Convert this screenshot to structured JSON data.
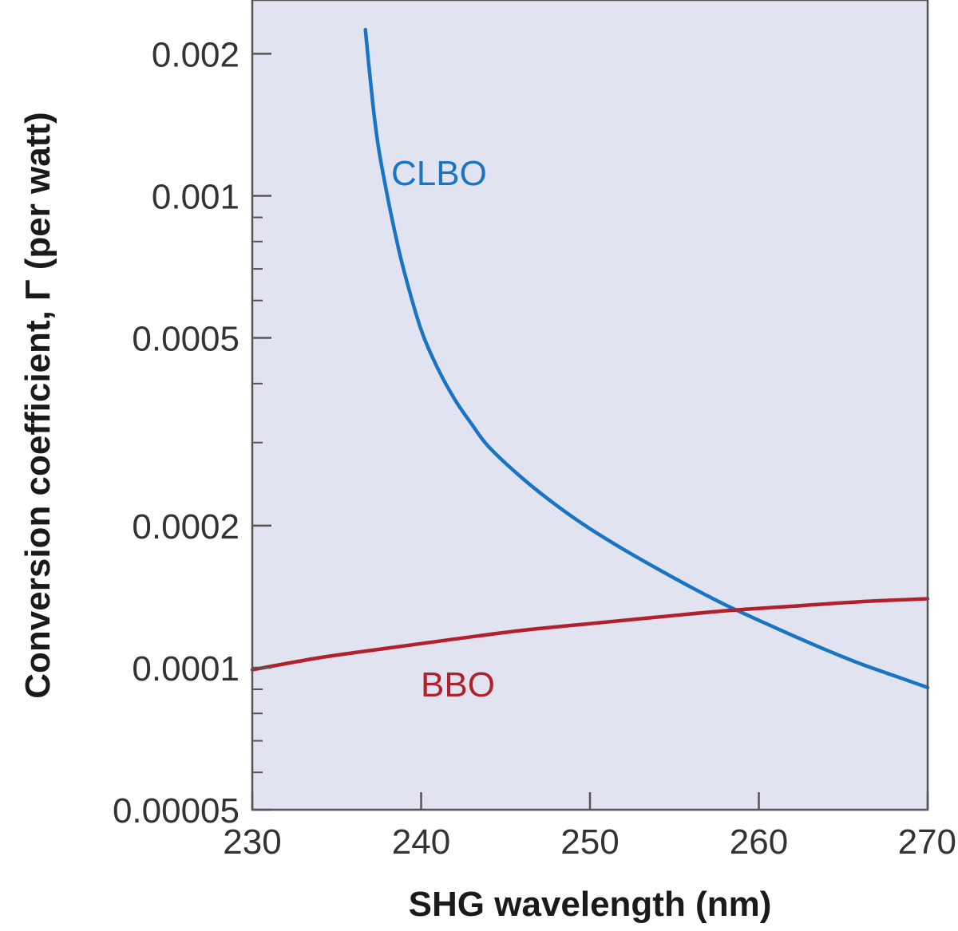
{
  "chart_data": {
    "type": "line",
    "title": "",
    "xlabel": "SHG wavelength (nm)",
    "ylabel": "Conversion coefficient, Γ (per watt)",
    "xlim": [
      230,
      270
    ],
    "ylim": [
      5e-05,
      0.0026
    ],
    "yscale": "log",
    "grid": false,
    "legend": "none",
    "plot_background": "#e1e4f0",
    "x_ticks": [
      230,
      240,
      250,
      260,
      270
    ],
    "x_tick_labels": [
      "230",
      "240",
      "250",
      "260",
      "270"
    ],
    "y_ticks": [
      0.002,
      0.001,
      0.0005,
      0.0002,
      0.0001,
      5e-05
    ],
    "y_tick_labels": [
      "0.002",
      "0.001",
      "0.0005",
      "0.0002",
      "0.0001",
      "0.00005"
    ],
    "series": [
      {
        "name": "CLBO",
        "color": "#1a74c4",
        "x": [
          236.7,
          236.9,
          237.2,
          237.5,
          238,
          238.5,
          239,
          240,
          241,
          242,
          243,
          244,
          246,
          248,
          250,
          252,
          254,
          256,
          258,
          260,
          262,
          264,
          266,
          268,
          270
        ],
        "y": [
          0.00225,
          0.0019,
          0.0015,
          0.00125,
          0.001,
          0.00082,
          0.00069,
          0.00052,
          0.00043,
          0.00037,
          0.000328,
          0.000294,
          0.000252,
          0.000221,
          0.000197,
          0.000178,
          0.000162,
          0.000148,
          0.000136,
          0.000126,
          0.000117,
          0.000109,
          0.000102,
          9.62e-05,
          9.08e-05
        ]
      },
      {
        "name": "BBO",
        "color": "#b0212d",
        "x": [
          230,
          234,
          238,
          242,
          246,
          250,
          254,
          258,
          262,
          266,
          270
        ],
        "y": [
          9.9e-05,
          0.000105,
          0.00011,
          0.000115,
          0.00012,
          0.000124,
          0.000128,
          0.000132,
          0.000135,
          0.000138,
          0.00014
        ]
      }
    ]
  }
}
